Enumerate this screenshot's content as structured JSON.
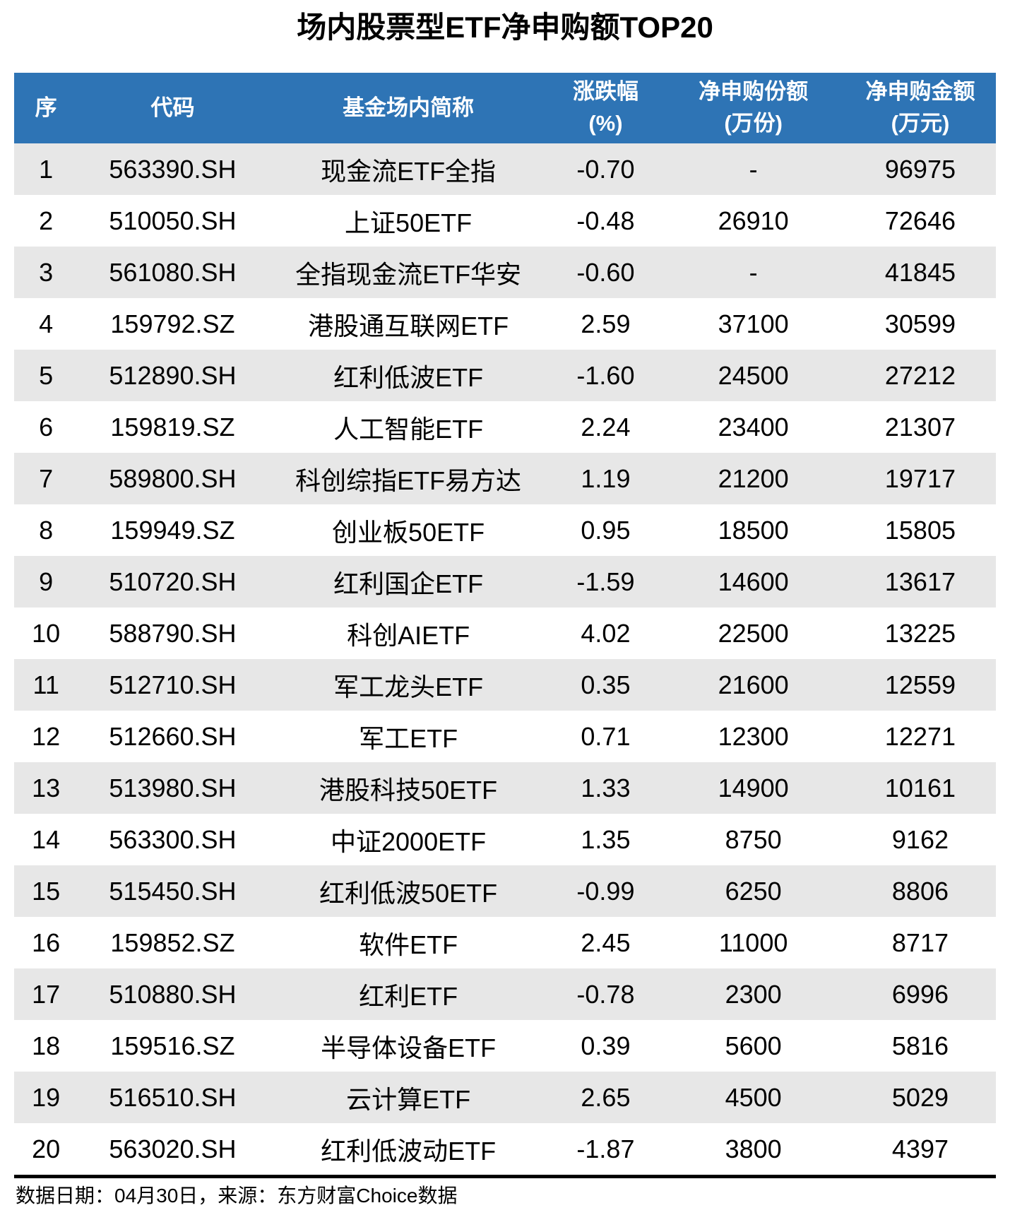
{
  "title": "场内股票型ETF净申购额TOP20",
  "colors": {
    "header_bg": "#2E74B5",
    "header_text": "#FFFFFF",
    "row_alt": "#E7E7E7",
    "row_bg": "#FFFFFF",
    "text": "#000000",
    "rule": "#000000"
  },
  "chart_data": {
    "type": "table",
    "title": "场内股票型ETF净申购额TOP20",
    "columns": [
      {
        "label": "序",
        "unit": ""
      },
      {
        "label": "代码",
        "unit": ""
      },
      {
        "label": "基金场内简称",
        "unit": ""
      },
      {
        "label": "涨跌幅",
        "unit": "(%)"
      },
      {
        "label": "净申购份额",
        "unit": "(万份)"
      },
      {
        "label": "净申购金额",
        "unit": "(万元)"
      }
    ],
    "rows": [
      [
        "1",
        "563390.SH",
        "现金流ETF全指",
        "-0.70",
        "-",
        "96975"
      ],
      [
        "2",
        "510050.SH",
        "上证50ETF",
        "-0.48",
        "26910",
        "72646"
      ],
      [
        "3",
        "561080.SH",
        "全指现金流ETF华安",
        "-0.60",
        "-",
        "41845"
      ],
      [
        "4",
        "159792.SZ",
        "港股通互联网ETF",
        "2.59",
        "37100",
        "30599"
      ],
      [
        "5",
        "512890.SH",
        "红利低波ETF",
        "-1.60",
        "24500",
        "27212"
      ],
      [
        "6",
        "159819.SZ",
        "人工智能ETF",
        "2.24",
        "23400",
        "21307"
      ],
      [
        "7",
        "589800.SH",
        "科创综指ETF易方达",
        "1.19",
        "21200",
        "19717"
      ],
      [
        "8",
        "159949.SZ",
        "创业板50ETF",
        "0.95",
        "18500",
        "15805"
      ],
      [
        "9",
        "510720.SH",
        "红利国企ETF",
        "-1.59",
        "14600",
        "13617"
      ],
      [
        "10",
        "588790.SH",
        "科创AIETF",
        "4.02",
        "22500",
        "13225"
      ],
      [
        "11",
        "512710.SH",
        "军工龙头ETF",
        "0.35",
        "21600",
        "12559"
      ],
      [
        "12",
        "512660.SH",
        "军工ETF",
        "0.71",
        "12300",
        "12271"
      ],
      [
        "13",
        "513980.SH",
        "港股科技50ETF",
        "1.33",
        "14900",
        "10161"
      ],
      [
        "14",
        "563300.SH",
        "中证2000ETF",
        "1.35",
        "8750",
        "9162"
      ],
      [
        "15",
        "515450.SH",
        "红利低波50ETF",
        "-0.99",
        "6250",
        "8806"
      ],
      [
        "16",
        "159852.SZ",
        "软件ETF",
        "2.45",
        "11000",
        "8717"
      ],
      [
        "17",
        "510880.SH",
        "红利ETF",
        "-0.78",
        "2300",
        "6996"
      ],
      [
        "18",
        "159516.SZ",
        "半导体设备ETF",
        "0.39",
        "5600",
        "5816"
      ],
      [
        "19",
        "516510.SH",
        "云计算ETF",
        "2.65",
        "4500",
        "5029"
      ],
      [
        "20",
        "563020.SH",
        "红利低波动ETF",
        "-1.87",
        "3800",
        "4397"
      ]
    ]
  },
  "footer": {
    "text": "数据日期：04月30日，来源：东方财富Choice数据"
  }
}
